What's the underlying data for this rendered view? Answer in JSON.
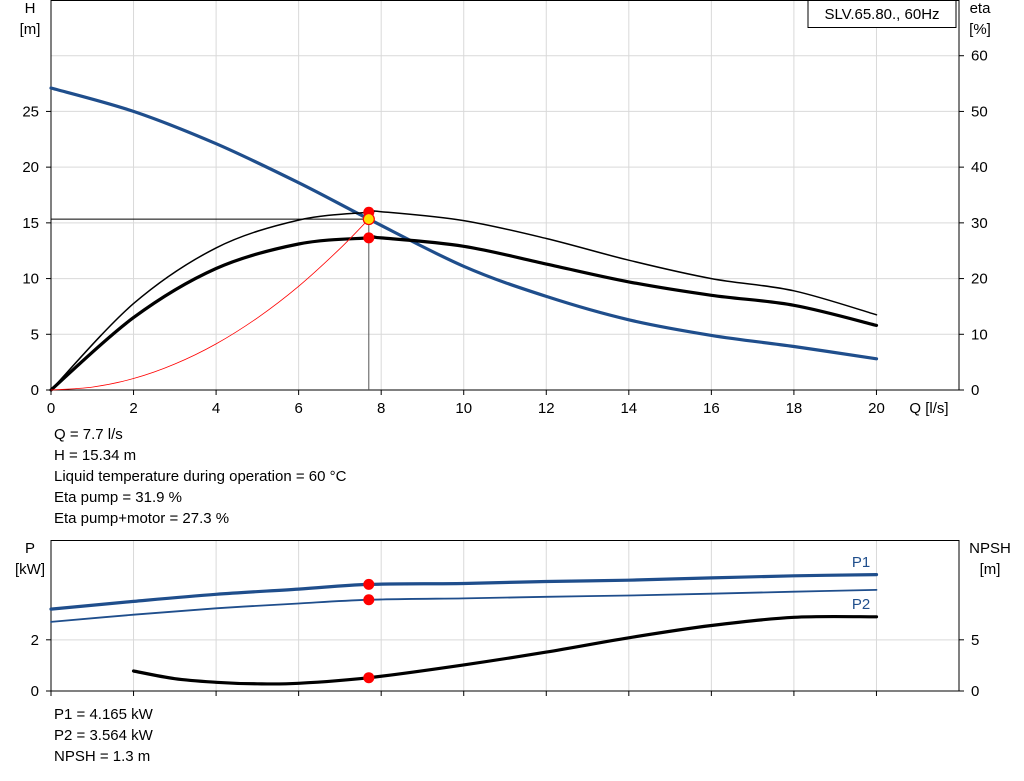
{
  "colors": {
    "blue": "#1f4e8c",
    "black": "#000000",
    "red": "#ff0000",
    "grid": "#d9d9d9",
    "yellow": "#ffdd00"
  },
  "top_readouts": [
    "Q = 7.7 l/s",
    "H = 15.34 m",
    "Liquid temperature during operation = 60 °C",
    "Eta pump = 31.9 %",
    "Eta pump+motor = 27.3 %"
  ],
  "bottom_readouts": [
    "P1 = 4.165 kW",
    "P2 = 3.564 kW",
    "NPSH = 1.3 m"
  ],
  "chart_data": [
    {
      "type": "line",
      "legend_box": "SLV.65.80., 60Hz",
      "xlabel": "Q [l/s]",
      "ylabel_left": [
        "H",
        "[m]"
      ],
      "ylabel_right": [
        "eta",
        "[%]"
      ],
      "xlim": [
        0,
        22
      ],
      "ylim_left": [
        0,
        35
      ],
      "ylim_right": [
        0,
        70
      ],
      "x_ticks": [
        0,
        2,
        4,
        6,
        8,
        10,
        12,
        14,
        16,
        18,
        20
      ],
      "y_ticks_left": [
        0,
        5,
        10,
        15,
        20,
        25
      ],
      "y_ticks_right": [
        0,
        10,
        20,
        30,
        40,
        50,
        60
      ],
      "grid": true,
      "series": [
        {
          "axis": "left",
          "color": "#1f4e8c",
          "width": 3.2,
          "points": [
            [
              0,
              27.1
            ],
            [
              2,
              25
            ],
            [
              4,
              22.1
            ],
            [
              6,
              18.6
            ],
            [
              7.7,
              15.34
            ],
            [
              10,
              11.1
            ],
            [
              12,
              8.4
            ],
            [
              14,
              6.3
            ],
            [
              16,
              4.9
            ],
            [
              18,
              3.9
            ],
            [
              20,
              2.8
            ]
          ]
        },
        {
          "axis": "right",
          "color": "#000000",
          "width": 1.5,
          "points": [
            [
              0,
              0
            ],
            [
              2,
              15.5
            ],
            [
              4,
              25.5
            ],
            [
              6,
              30.5
            ],
            [
              7.7,
              31.9
            ],
            [
              8,
              32
            ],
            [
              10,
              30.4
            ],
            [
              12,
              27.2
            ],
            [
              14,
              23.3
            ],
            [
              16,
              20
            ],
            [
              18,
              17.8
            ],
            [
              20,
              13.5
            ]
          ]
        },
        {
          "axis": "right",
          "color": "#000000",
          "width": 3.2,
          "points": [
            [
              0,
              0
            ],
            [
              2,
              13
            ],
            [
              4,
              21.8
            ],
            [
              6,
              26.2
            ],
            [
              7.7,
              27.3
            ],
            [
              8,
              27.3
            ],
            [
              10,
              25.8
            ],
            [
              12,
              22.6
            ],
            [
              14,
              19.4
            ],
            [
              16,
              17
            ],
            [
              18,
              15.2
            ],
            [
              20,
              11.6
            ]
          ]
        },
        {
          "axis": "left",
          "color": "#ff0000",
          "width": 0.8,
          "points": [
            [
              0,
              0
            ],
            [
              1,
              0.26
            ],
            [
              2,
              1.03
            ],
            [
              3,
              2.33
            ],
            [
              4,
              4.14
            ],
            [
              5,
              6.47
            ],
            [
              6,
              9.31
            ],
            [
              7,
              12.68
            ],
            [
              7.7,
              15.34
            ]
          ]
        }
      ],
      "operating_point": {
        "q": 7.7,
        "h": 15.34,
        "eta_pump": 31.9,
        "eta_total": 27.3
      }
    },
    {
      "type": "line",
      "ylabel_left": [
        "P",
        "[kW]"
      ],
      "ylabel_right": [
        "NPSH",
        "[m]"
      ],
      "xlim": [
        0,
        22
      ],
      "ylim_left": [
        0,
        5.9
      ],
      "ylim_right": [
        0,
        14.75
      ],
      "x_ticks": [
        0,
        2,
        4,
        6,
        8,
        10,
        12,
        14,
        16,
        18,
        20
      ],
      "y_ticks_left": [
        0,
        2
      ],
      "y_ticks_right": [
        0,
        5
      ],
      "grid": true,
      "series": [
        {
          "name": "P1",
          "axis": "left",
          "color": "#1f4e8c",
          "width": 3.2,
          "points": [
            [
              0,
              3.2
            ],
            [
              2,
              3.5
            ],
            [
              4,
              3.78
            ],
            [
              6,
              3.98
            ],
            [
              7.7,
              4.165
            ],
            [
              10,
              4.2
            ],
            [
              12,
              4.28
            ],
            [
              14,
              4.33
            ],
            [
              16,
              4.42
            ],
            [
              18,
              4.5
            ],
            [
              20,
              4.55
            ]
          ]
        },
        {
          "name": "P2",
          "axis": "left",
          "color": "#1f4e8c",
          "width": 1.8,
          "points": [
            [
              0,
              2.7
            ],
            [
              2,
              2.98
            ],
            [
              4,
              3.23
            ],
            [
              6,
              3.42
            ],
            [
              7.7,
              3.564
            ],
            [
              10,
              3.62
            ],
            [
              12,
              3.68
            ],
            [
              14,
              3.73
            ],
            [
              16,
              3.8
            ],
            [
              18,
              3.88
            ],
            [
              20,
              3.95
            ]
          ]
        },
        {
          "axis": "right",
          "color": "#000000",
          "width": 3.2,
          "points": [
            [
              2,
              1.95
            ],
            [
              3,
              1.2
            ],
            [
              4,
              0.85
            ],
            [
              5,
              0.7
            ],
            [
              6,
              0.75
            ],
            [
              7.7,
              1.3
            ],
            [
              10,
              2.55
            ],
            [
              12,
              3.8
            ],
            [
              14,
              5.2
            ],
            [
              16,
              6.4
            ],
            [
              18,
              7.2
            ],
            [
              20,
              7.25
            ]
          ]
        }
      ],
      "operating_point": {
        "q": 7.7,
        "p1": 4.165,
        "p2": 3.564,
        "npsh": 1.3
      }
    }
  ]
}
